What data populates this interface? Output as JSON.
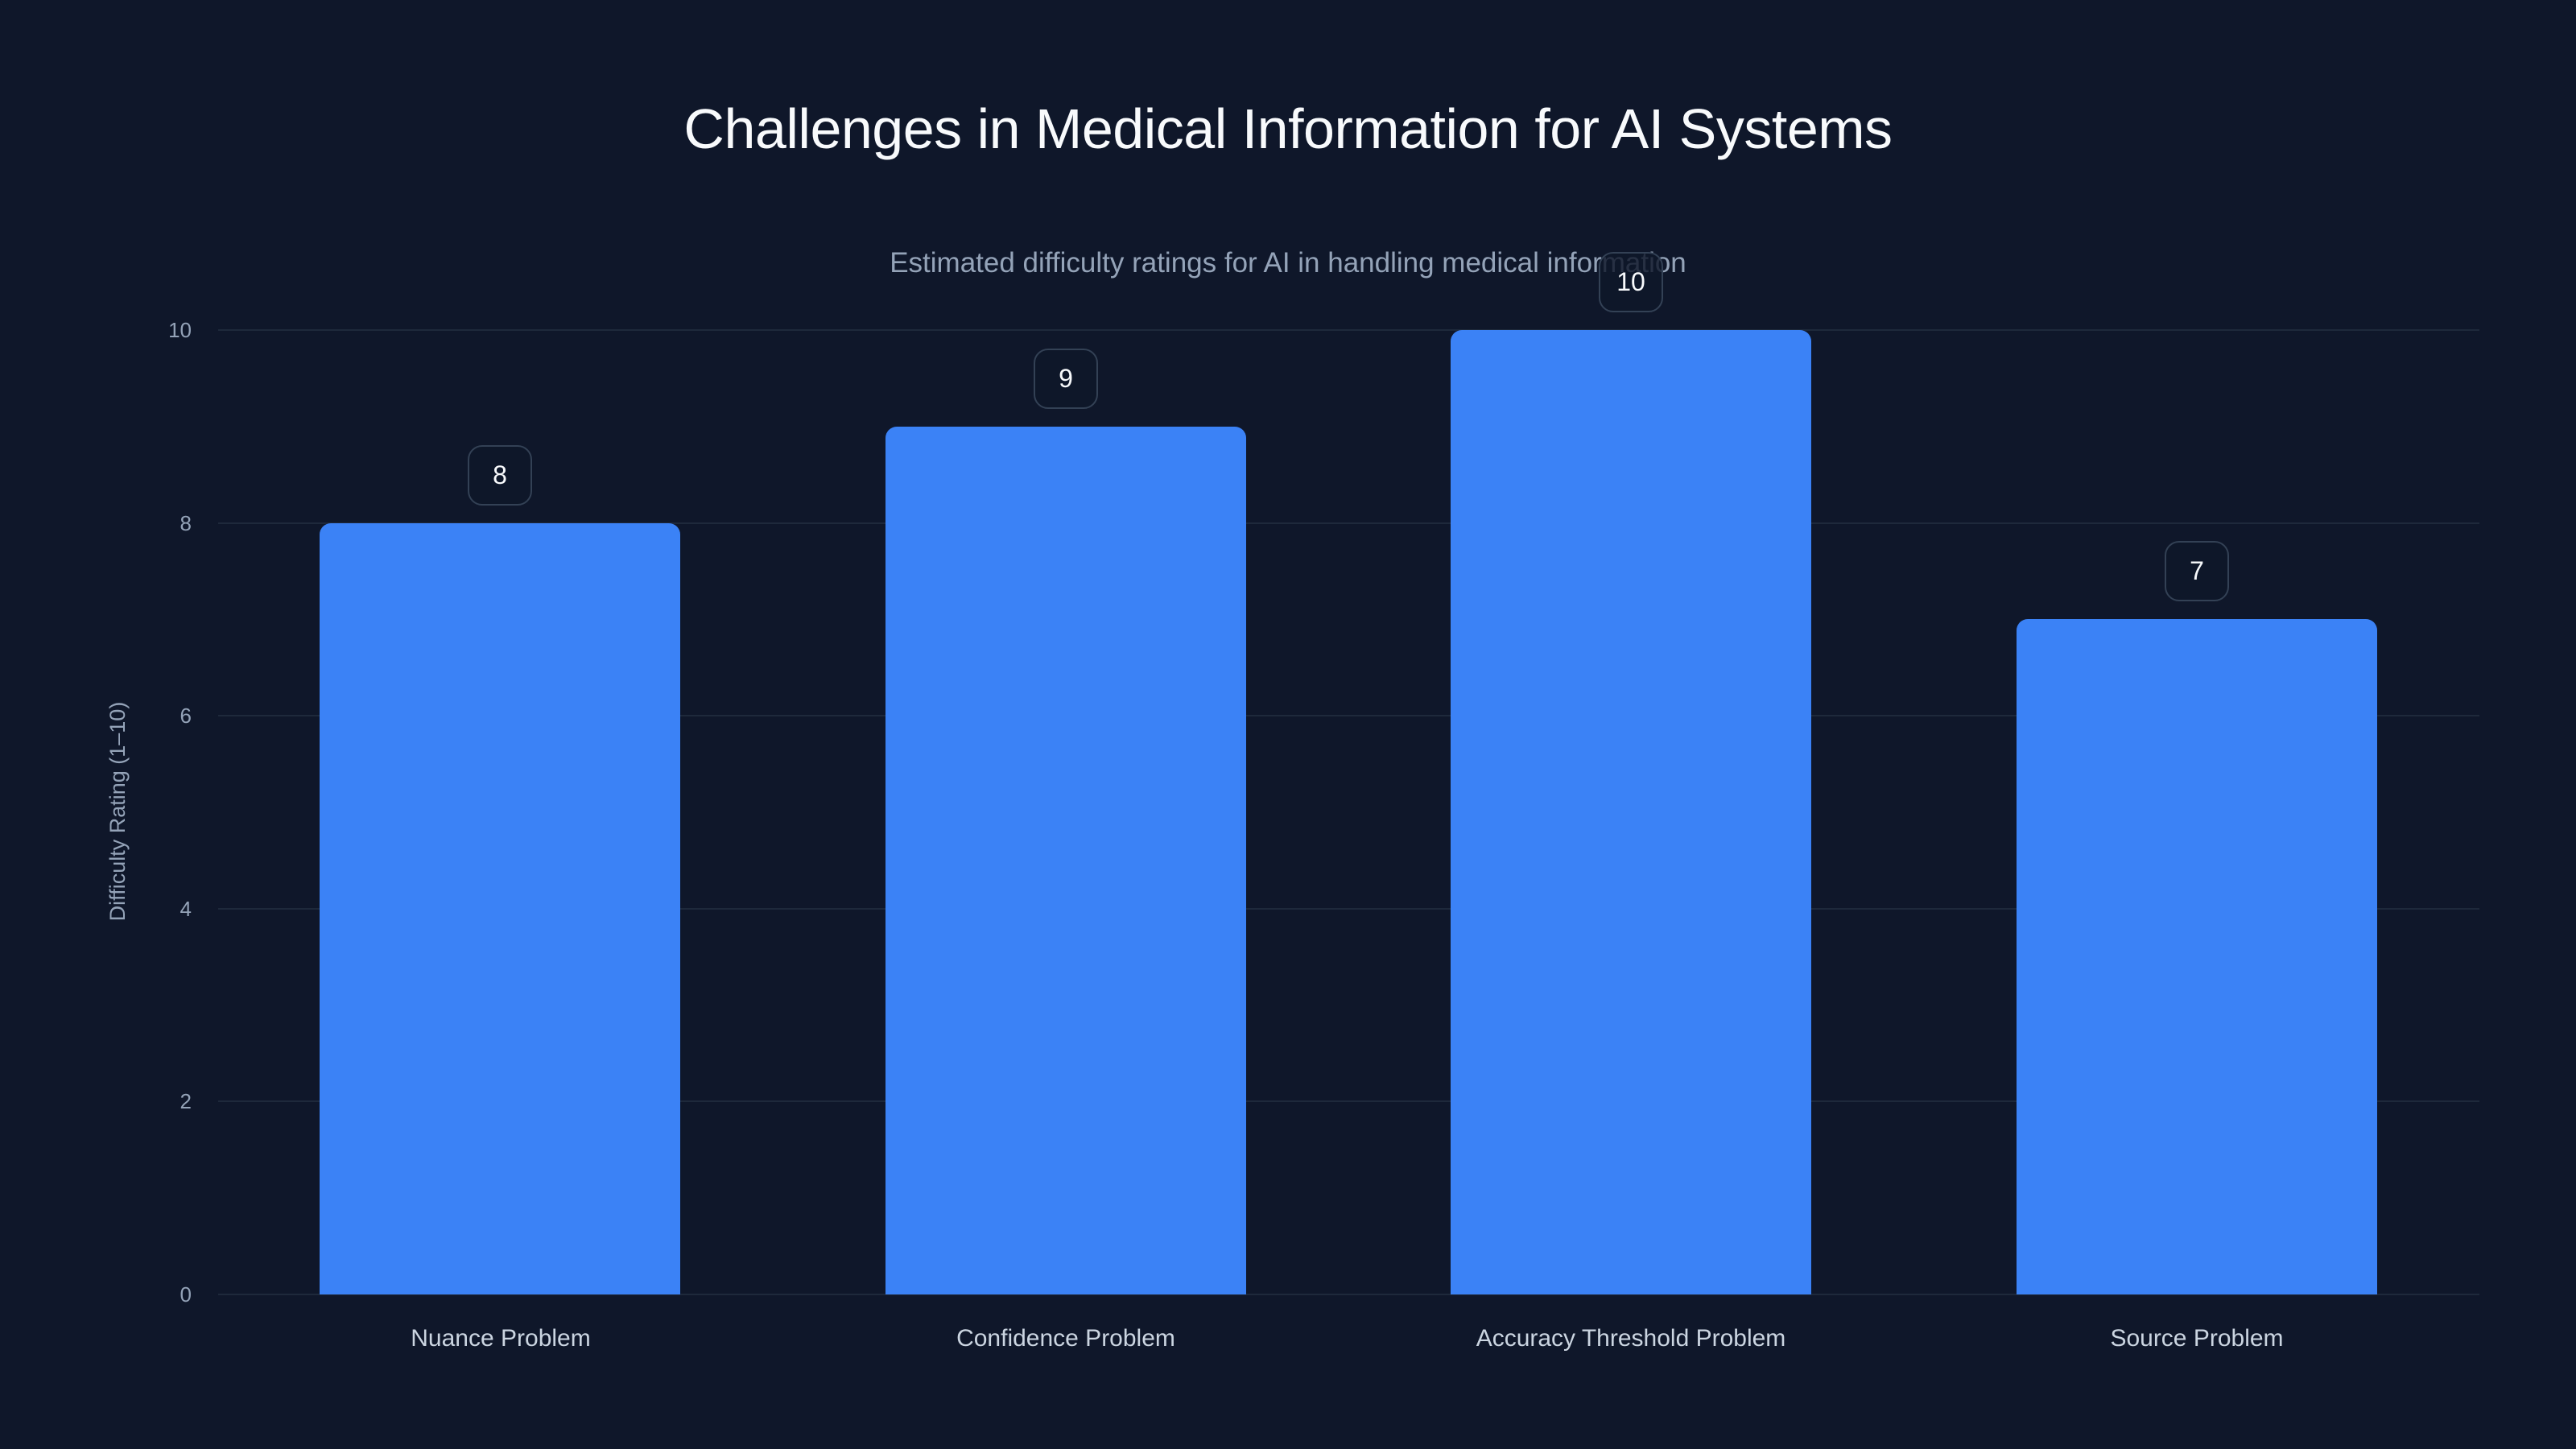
{
  "header": {
    "title": "Challenges in Medical Information for AI Systems",
    "subtitle": "Estimated difficulty ratings for AI in handling medical information"
  },
  "axes": {
    "y_title": "Difficulty Rating (1–10)",
    "y_ticks": [
      "0",
      "2",
      "4",
      "6",
      "8",
      "10"
    ]
  },
  "bars": [
    {
      "label": "Nuance Problem",
      "value": 8,
      "value_label": "8"
    },
    {
      "label": "Confidence Problem",
      "value": 9,
      "value_label": "9"
    },
    {
      "label": "Accuracy Threshold Problem",
      "value": 10,
      "value_label": "10"
    },
    {
      "label": "Source Problem",
      "value": 7,
      "value_label": "7"
    }
  ],
  "colors": {
    "background": "#0f172a",
    "bar": "#3b82f6",
    "grid": "#1e293b",
    "title": "#f8fafc",
    "subtitle": "#94a3b8",
    "tick": "#94a3b8",
    "category_label": "#cbd5e1",
    "badge_border": "#334155"
  },
  "chart_data": {
    "type": "bar",
    "title": "Challenges in Medical Information for AI Systems",
    "subtitle": "Estimated difficulty ratings for AI in handling medical information",
    "categories": [
      "Nuance Problem",
      "Confidence Problem",
      "Accuracy Threshold Problem",
      "Source Problem"
    ],
    "values": [
      8,
      9,
      10,
      7
    ],
    "xlabel": "",
    "ylabel": "Difficulty Rating (1–10)",
    "ylim": [
      0,
      10
    ],
    "yticks": [
      0,
      2,
      4,
      6,
      8,
      10
    ],
    "grid": true,
    "legend": null,
    "data_labels": true,
    "bar_color": "#3b82f6"
  }
}
